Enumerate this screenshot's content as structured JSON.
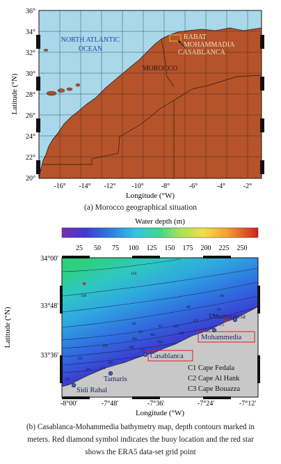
{
  "map_a": {
    "y_label": "Latitude (°N)",
    "x_label": "Longitude (°W)",
    "lat_ticks": [
      "36°",
      "34°",
      "32°",
      "30°",
      "28°",
      "26°",
      "24°",
      "22°",
      "20°"
    ],
    "lon_ticks": [
      "-16°",
      "-14°",
      "-12°",
      "-10°",
      "-8°",
      "-6°",
      "-4°",
      "-2°"
    ],
    "ocean_label_1": "NORTH ATLANTIC",
    "ocean_label_2": "OCEAN",
    "country_label": "MOROCCO",
    "city_rabat": "RABAT",
    "city_mohammadia": "MOHAMMADIA",
    "city_casablanca": "CASABLANCA",
    "colors": {
      "ocean": "#a8d8ea",
      "land": "#b5532a",
      "grid": "#222222"
    }
  },
  "caption_a": "(a) Morocco geographical situation",
  "colorbar": {
    "title": "Water depth (m)",
    "ticks": [
      "25",
      "50",
      "75",
      "100",
      "125",
      "150",
      "175",
      "200",
      "225",
      "250"
    ],
    "colormap": [
      "#7b2fb5",
      "#3b3bd0",
      "#2f7fe0",
      "#2fc8e0",
      "#3fd98a",
      "#a6e05a",
      "#f0e040",
      "#f5a030",
      "#e8502a",
      "#d42020"
    ]
  },
  "map_b": {
    "y_label": "Latitude (°N)",
    "x_label": "Longitude (°W)",
    "lat_ticks": [
      "34°00'",
      "33°48'",
      "33°36'"
    ],
    "lon_ticks": [
      "-8°00'",
      "-7°48'",
      "-7°36'",
      "-7°24'",
      "-7°12'"
    ],
    "contour_labels": [
      "120",
      "120",
      "90",
      "60",
      "30",
      "D1",
      "D2",
      "D3",
      "D4",
      "D5",
      "D1",
      "H1",
      "H2",
      "H3",
      "H4",
      "H5",
      "E1",
      "E2",
      "E3",
      "E4",
      "C1",
      "C2",
      "C3",
      "50"
    ],
    "places": {
      "elmansouria": "Elmansouria",
      "mohammedia": "Mohammedia",
      "casablanca": "Casablanca",
      "tamaris": "Tamaris",
      "sidi_rahal": "Sidi Rahal"
    },
    "legend": [
      "C1 Cape Fedala",
      "C2 Cape Al Hank",
      "C3 Cape Bouazza"
    ]
  },
  "caption_b_line1": "(b) Casablanca-Mohammedia bathymetry map, depth contours marked in",
  "caption_b_line2": "meters. Red diamond symbol indicates the buoy location and the red star",
  "caption_b_line3": "shows the ERA5 data-set grid point"
}
